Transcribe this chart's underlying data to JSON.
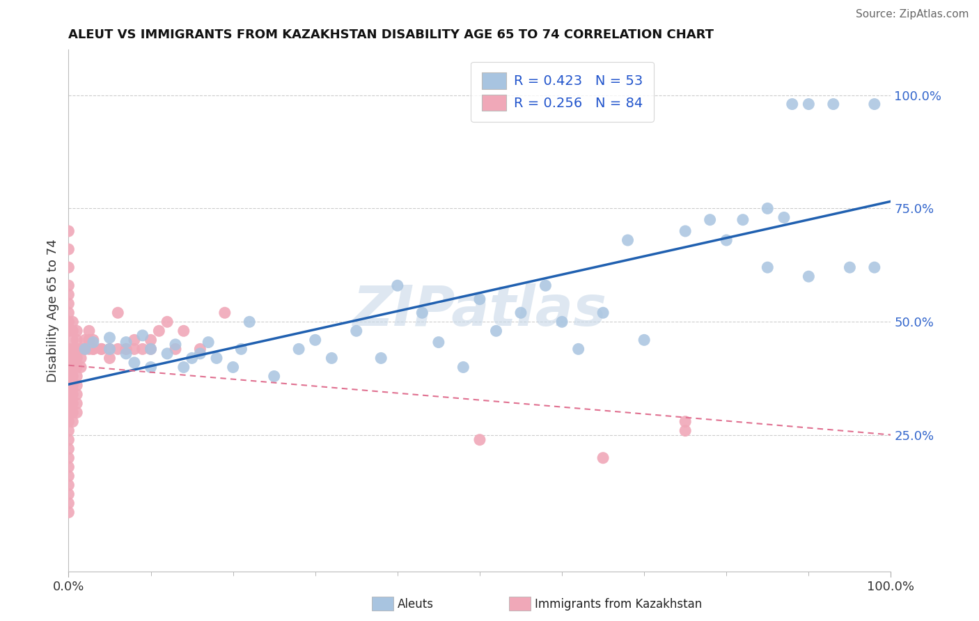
{
  "title": "ALEUT VS IMMIGRANTS FROM KAZAKHSTAN DISABILITY AGE 65 TO 74 CORRELATION CHART",
  "source": "Source: ZipAtlas.com",
  "ylabel": "Disability Age 65 to 74",
  "blue_color": "#a8c4e0",
  "pink_color": "#f0a8b8",
  "blue_line_color": "#2060b0",
  "pink_line_color": "#e07090",
  "watermark_text": "ZIPatlas",
  "watermark_color": "#c8d8e8",
  "legend_labels": [
    "Aleuts",
    "Immigrants from Kazakhstan"
  ],
  "aleut_R": 0.423,
  "aleut_N": 53,
  "kaz_R": 0.256,
  "kaz_N": 84,
  "ytick_vals": [
    0.25,
    0.5,
    0.75,
    1.0
  ],
  "ytick_labels": [
    "25.0%",
    "50.0%",
    "75.0%",
    "100.0%"
  ],
  "xtick_vals": [
    0.0,
    1.0
  ],
  "xtick_labels": [
    "0.0%",
    "100.0%"
  ],
  "xlim": [
    0.0,
    1.0
  ],
  "ylim": [
    -0.05,
    1.1
  ],
  "aleut_points": [
    [
      0.02,
      0.44
    ],
    [
      0.03,
      0.455
    ],
    [
      0.05,
      0.44
    ],
    [
      0.05,
      0.465
    ],
    [
      0.07,
      0.43
    ],
    [
      0.07,
      0.455
    ],
    [
      0.08,
      0.41
    ],
    [
      0.09,
      0.47
    ],
    [
      0.1,
      0.4
    ],
    [
      0.1,
      0.44
    ],
    [
      0.12,
      0.43
    ],
    [
      0.13,
      0.45
    ],
    [
      0.14,
      0.4
    ],
    [
      0.15,
      0.42
    ],
    [
      0.16,
      0.43
    ],
    [
      0.17,
      0.455
    ],
    [
      0.18,
      0.42
    ],
    [
      0.2,
      0.4
    ],
    [
      0.21,
      0.44
    ],
    [
      0.22,
      0.5
    ],
    [
      0.25,
      0.38
    ],
    [
      0.28,
      0.44
    ],
    [
      0.3,
      0.46
    ],
    [
      0.32,
      0.42
    ],
    [
      0.35,
      0.48
    ],
    [
      0.38,
      0.42
    ],
    [
      0.4,
      0.58
    ],
    [
      0.43,
      0.52
    ],
    [
      0.45,
      0.455
    ],
    [
      0.48,
      0.4
    ],
    [
      0.5,
      0.55
    ],
    [
      0.52,
      0.48
    ],
    [
      0.55,
      0.52
    ],
    [
      0.58,
      0.58
    ],
    [
      0.6,
      0.5
    ],
    [
      0.62,
      0.44
    ],
    [
      0.65,
      0.52
    ],
    [
      0.68,
      0.68
    ],
    [
      0.7,
      0.46
    ],
    [
      0.75,
      0.7
    ],
    [
      0.78,
      0.725
    ],
    [
      0.8,
      0.68
    ],
    [
      0.82,
      0.725
    ],
    [
      0.85,
      0.62
    ],
    [
      0.88,
      0.98
    ],
    [
      0.9,
      0.98
    ],
    [
      0.93,
      0.98
    ],
    [
      0.85,
      0.75
    ],
    [
      0.87,
      0.73
    ],
    [
      0.9,
      0.6
    ],
    [
      0.95,
      0.62
    ],
    [
      0.98,
      0.62
    ],
    [
      0.98,
      0.98
    ]
  ],
  "kazakhstan_points": [
    [
      0.0,
      0.7
    ],
    [
      0.0,
      0.66
    ],
    [
      0.0,
      0.62
    ],
    [
      0.0,
      0.58
    ],
    [
      0.0,
      0.56
    ],
    [
      0.0,
      0.54
    ],
    [
      0.0,
      0.52
    ],
    [
      0.0,
      0.5
    ],
    [
      0.0,
      0.48
    ],
    [
      0.0,
      0.44
    ],
    [
      0.0,
      0.42
    ],
    [
      0.0,
      0.4
    ],
    [
      0.0,
      0.38
    ],
    [
      0.0,
      0.36
    ],
    [
      0.0,
      0.34
    ],
    [
      0.0,
      0.32
    ],
    [
      0.0,
      0.3
    ],
    [
      0.0,
      0.28
    ],
    [
      0.0,
      0.26
    ],
    [
      0.0,
      0.24
    ],
    [
      0.0,
      0.22
    ],
    [
      0.0,
      0.2
    ],
    [
      0.0,
      0.18
    ],
    [
      0.0,
      0.16
    ],
    [
      0.0,
      0.14
    ],
    [
      0.0,
      0.12
    ],
    [
      0.0,
      0.1
    ],
    [
      0.0,
      0.08
    ],
    [
      0.005,
      0.42
    ],
    [
      0.005,
      0.44
    ],
    [
      0.005,
      0.4
    ],
    [
      0.005,
      0.38
    ],
    [
      0.005,
      0.36
    ],
    [
      0.005,
      0.34
    ],
    [
      0.005,
      0.32
    ],
    [
      0.005,
      0.3
    ],
    [
      0.005,
      0.28
    ],
    [
      0.005,
      0.46
    ],
    [
      0.005,
      0.48
    ],
    [
      0.005,
      0.5
    ],
    [
      0.01,
      0.44
    ],
    [
      0.01,
      0.42
    ],
    [
      0.01,
      0.4
    ],
    [
      0.01,
      0.38
    ],
    [
      0.01,
      0.36
    ],
    [
      0.01,
      0.34
    ],
    [
      0.01,
      0.32
    ],
    [
      0.01,
      0.3
    ],
    [
      0.01,
      0.46
    ],
    [
      0.01,
      0.48
    ],
    [
      0.015,
      0.42
    ],
    [
      0.015,
      0.44
    ],
    [
      0.015,
      0.4
    ],
    [
      0.02,
      0.44
    ],
    [
      0.02,
      0.46
    ],
    [
      0.025,
      0.44
    ],
    [
      0.025,
      0.46
    ],
    [
      0.025,
      0.48
    ],
    [
      0.03,
      0.44
    ],
    [
      0.03,
      0.44
    ],
    [
      0.03,
      0.46
    ],
    [
      0.04,
      0.44
    ],
    [
      0.04,
      0.44
    ],
    [
      0.05,
      0.42
    ],
    [
      0.05,
      0.44
    ],
    [
      0.06,
      0.44
    ],
    [
      0.06,
      0.52
    ],
    [
      0.07,
      0.44
    ],
    [
      0.07,
      0.44
    ],
    [
      0.08,
      0.46
    ],
    [
      0.08,
      0.44
    ],
    [
      0.09,
      0.44
    ],
    [
      0.1,
      0.46
    ],
    [
      0.1,
      0.44
    ],
    [
      0.11,
      0.48
    ],
    [
      0.12,
      0.5
    ],
    [
      0.13,
      0.44
    ],
    [
      0.14,
      0.48
    ],
    [
      0.16,
      0.44
    ],
    [
      0.19,
      0.52
    ],
    [
      0.5,
      0.24
    ],
    [
      0.65,
      0.2
    ],
    [
      0.75,
      0.26
    ],
    [
      0.75,
      0.28
    ]
  ]
}
